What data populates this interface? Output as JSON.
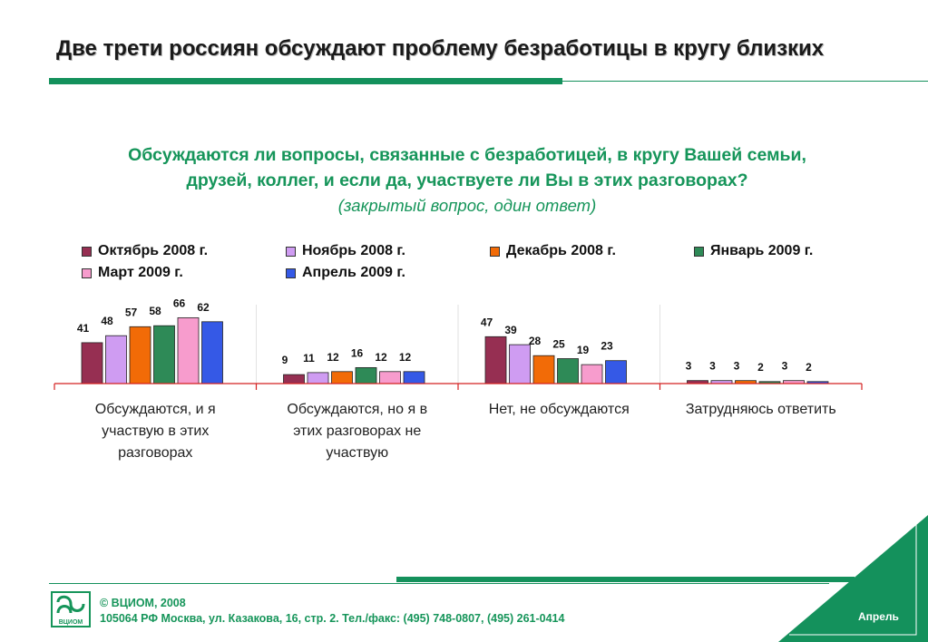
{
  "header": {
    "title": "Две трети россиян обсуждают проблему безработицы в кругу близких"
  },
  "question": {
    "line1": "Обсуждаются ли вопросы, связанные с безработицей, в кругу Вашей семьи,",
    "line2": "друзей, коллег, и если да, участвуете ли Вы в этих разговорах?",
    "note": "(закрытый вопрос, один ответ)"
  },
  "chart_data": {
    "type": "bar",
    "categories": [
      "Обсуждаются, и я участвую в этих разговорах",
      "Обсуждаются, но я в этих разговорах не участвую",
      "Нет, не обсуждаются",
      "Затрудняюсь ответить"
    ],
    "category_lines": [
      [
        "Обсуждаются, и я",
        "участвую в этих",
        "разговорах"
      ],
      [
        "Обсуждаются, но я в",
        "этих разговорах не",
        "участвую"
      ],
      [
        "Нет, не обсуждаются"
      ],
      [
        "Затрудняюсь ответить"
      ]
    ],
    "series": [
      {
        "name": "Октябрь 2008 г.",
        "color": "#962f52",
        "values": [
          41,
          9,
          47,
          3
        ]
      },
      {
        "name": "Ноябрь 2008 г.",
        "color": "#cf9cf2",
        "values": [
          48,
          11,
          39,
          3
        ]
      },
      {
        "name": "Декабрь 2008 г.",
        "color": "#f26b07",
        "values": [
          57,
          12,
          28,
          3
        ]
      },
      {
        "name": "Январь 2009 г.",
        "color": "#2e8a57",
        "values": [
          58,
          16,
          25,
          2
        ]
      },
      {
        "name": "Март 2009 г.",
        "color": "#f79ccd",
        "values": [
          66,
          12,
          19,
          3
        ]
      },
      {
        "name": "Апрель 2009 г.",
        "color": "#3559e6",
        "values": [
          62,
          12,
          23,
          2
        ]
      }
    ],
    "ylim": [
      0,
      100
    ],
    "grid": false,
    "legend_position": "top"
  },
  "footer": {
    "copyright": "© ВЦИОМ, 2008",
    "address": "105064 РФ Москва, ул. Казакова, 16, стр. 2.  Тел./факс: (495) 748-0807, (495) 261-0414",
    "logo_text": "ВЦИОМ",
    "month": "Апрель"
  },
  "colors": {
    "brand_green": "#14915c",
    "question_green": "#16955a"
  }
}
